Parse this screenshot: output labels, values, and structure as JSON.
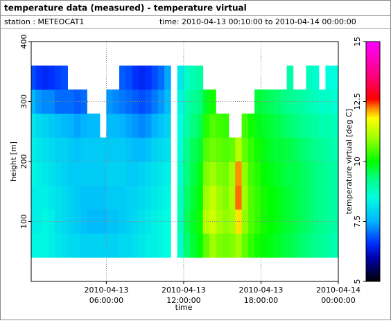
{
  "chart_data": {
    "type": "heatmap",
    "title": "temperature data (measured) - temperature virtual",
    "station": "station : METEOCAT1",
    "time_range": "time: 2010-04-13 00:10:00 to 2010-04-14 00:00:00",
    "xlabel": "time",
    "ylabel": "height [m]",
    "colorbar_label": "temperature virtual [deg C]",
    "xlim": [
      "2010-04-13 00:10:00",
      "2010-04-14 00:00:00"
    ],
    "xticks": [
      {
        "value": "2010-04-13 06:00:00",
        "label": [
          "2010-04-13",
          "06:00:00"
        ]
      },
      {
        "value": "2010-04-13 12:00:00",
        "label": [
          "2010-04-13",
          "12:00:00"
        ]
      },
      {
        "value": "2010-04-13 18:00:00",
        "label": [
          "2010-04-13",
          "18:00:00"
        ]
      },
      {
        "value": "2010-04-14 00:00:00",
        "label": [
          "2010-04-14",
          "00:00:00"
        ]
      }
    ],
    "ylim": [
      0,
      400
    ],
    "yticks": [
      100,
      200,
      300,
      400
    ],
    "grid": true,
    "clim": [
      5,
      15
    ],
    "cticks": [
      5,
      7.5,
      10,
      12.5,
      15
    ],
    "colorscale": [
      [
        5,
        "#000000"
      ],
      [
        6,
        "#0000b0"
      ],
      [
        6.6,
        "#0030ff"
      ],
      [
        7.5,
        "#00b4ff"
      ],
      [
        8.5,
        "#00ffe0"
      ],
      [
        9.3,
        "#00ff80"
      ],
      [
        10,
        "#00ff00"
      ],
      [
        11,
        "#a0ff00"
      ],
      [
        11.8,
        "#ffff00"
      ],
      [
        12.2,
        "#ff9000"
      ],
      [
        12.6,
        "#ff0000"
      ],
      [
        13.6,
        "#ff0080"
      ],
      [
        15,
        "#ff00ff"
      ]
    ],
    "x": [
      "2010-04-13 00:10:00",
      "2010-04-13 00:30:00",
      "2010-04-13 01:00:00",
      "2010-04-13 01:30:00",
      "2010-04-13 02:00:00",
      "2010-04-13 02:30:00",
      "2010-04-13 03:00:00",
      "2010-04-13 03:30:00",
      "2010-04-13 04:00:00",
      "2010-04-13 04:30:00",
      "2010-04-13 05:00:00",
      "2010-04-13 05:30:00",
      "2010-04-13 06:00:00",
      "2010-04-13 06:30:00",
      "2010-04-13 07:00:00",
      "2010-04-13 07:30:00",
      "2010-04-13 08:00:00",
      "2010-04-13 08:30:00",
      "2010-04-13 09:00:00",
      "2010-04-13 09:30:00",
      "2010-04-13 10:00:00",
      "2010-04-13 10:30:00",
      "2010-04-13 11:00:00",
      "2010-04-13 11:30:00",
      "2010-04-13 12:00:00",
      "2010-04-13 12:30:00",
      "2010-04-13 13:00:00",
      "2010-04-13 13:30:00",
      "2010-04-13 14:00:00",
      "2010-04-13 14:30:00",
      "2010-04-13 15:00:00",
      "2010-04-13 15:30:00",
      "2010-04-13 16:00:00",
      "2010-04-13 16:30:00",
      "2010-04-13 17:00:00",
      "2010-04-13 17:30:00",
      "2010-04-13 18:00:00",
      "2010-04-13 18:30:00",
      "2010-04-13 19:00:00",
      "2010-04-13 19:30:00",
      "2010-04-13 20:00:00",
      "2010-04-13 20:30:00",
      "2010-04-13 21:00:00",
      "2010-04-13 21:30:00",
      "2010-04-13 22:00:00",
      "2010-04-13 22:30:00",
      "2010-04-13 23:00:00",
      "2010-04-13 23:30:00",
      "2010-04-14 00:00:00"
    ],
    "y": [
      40,
      80,
      120,
      160,
      200,
      240,
      280,
      320,
      360
    ],
    "z": [
      [
        8.4,
        8.3,
        8.3,
        8.4,
        8.3,
        8.2,
        7.6,
        6.8
      ],
      [
        8.4,
        8.3,
        8.3,
        8.3,
        8.2,
        8.0,
        7.3,
        6.6
      ],
      [
        8.4,
        8.4,
        8.3,
        8.2,
        8.1,
        7.9,
        7.2,
        6.5
      ],
      [
        8.3,
        8.3,
        8.2,
        8.1,
        8.0,
        7.8,
        7.2,
        6.6
      ],
      [
        8.2,
        8.1,
        8.1,
        8.0,
        7.9,
        7.7,
        7.0,
        6.7
      ],
      [
        8.1,
        8.0,
        8.0,
        7.9,
        7.9,
        7.6,
        7.0,
        6.8
      ],
      [
        8.0,
        7.9,
        7.9,
        7.8,
        7.8,
        7.5,
        7.0,
        null
      ],
      [
        8.0,
        7.8,
        7.8,
        7.8,
        7.7,
        7.4,
        6.9,
        null
      ],
      [
        7.9,
        7.7,
        7.7,
        7.8,
        7.8,
        7.5,
        7.0,
        null
      ],
      [
        7.9,
        7.6,
        7.7,
        7.8,
        7.8,
        7.6,
        null,
        null
      ],
      [
        7.9,
        7.6,
        7.7,
        7.8,
        7.8,
        7.6,
        null,
        null
      ],
      [
        7.9,
        7.6,
        7.7,
        7.8,
        7.8,
        null,
        null,
        null
      ],
      [
        7.9,
        7.7,
        7.8,
        7.9,
        7.8,
        7.6,
        7.3,
        null
      ],
      [
        7.9,
        7.7,
        7.8,
        7.9,
        7.8,
        7.6,
        7.2,
        null
      ],
      [
        8.0,
        7.8,
        7.8,
        7.9,
        7.8,
        7.5,
        7.1,
        6.9
      ],
      [
        8.0,
        7.9,
        7.9,
        7.8,
        7.7,
        7.4,
        7.0,
        6.8
      ],
      [
        8.1,
        8.0,
        7.9,
        7.8,
        7.6,
        7.3,
        6.9,
        6.6
      ],
      [
        8.2,
        8.1,
        8.0,
        7.9,
        7.6,
        7.2,
        6.8,
        6.5
      ],
      [
        8.3,
        8.2,
        8.1,
        8.0,
        7.7,
        7.3,
        6.9,
        6.6
      ],
      [
        8.3,
        8.3,
        8.2,
        8.1,
        7.9,
        7.5,
        7.1,
        6.8
      ],
      [
        8.4,
        8.4,
        8.3,
        8.2,
        8.0,
        7.7,
        7.3,
        7.0
      ],
      [
        8.5,
        8.5,
        8.4,
        8.3,
        8.1,
        7.9,
        7.6,
        7.4
      ],
      [
        null,
        null,
        null,
        null,
        null,
        null,
        null,
        null
      ],
      [
        8.7,
        8.8,
        8.8,
        8.7,
        8.6,
        8.5,
        8.4,
        8.2
      ],
      [
        9.4,
        9.5,
        9.4,
        9.3,
        9.2,
        9.0,
        8.9,
        8.7
      ],
      [
        9.7,
        9.8,
        9.7,
        9.6,
        9.5,
        9.3,
        9.1,
        8.9
      ],
      [
        10.0,
        10.1,
        10.0,
        9.9,
        9.7,
        9.5,
        9.3,
        9.0
      ],
      [
        10.6,
        11.2,
        11.0,
        10.8,
        10.5,
        10.2,
        9.8,
        null
      ],
      [
        11.0,
        11.4,
        11.3,
        11.0,
        10.7,
        10.5,
        10.1,
        null
      ],
      [
        10.8,
        11.1,
        11.0,
        10.8,
        10.6,
        10.4,
        null,
        null
      ],
      [
        10.7,
        10.9,
        10.8,
        10.7,
        10.5,
        10.3,
        null,
        null
      ],
      [
        10.8,
        11.0,
        11.1,
        11.0,
        10.6,
        null,
        null,
        null
      ],
      [
        11.0,
        11.9,
        12.3,
        12.2,
        11.2,
        null,
        null,
        null
      ],
      [
        10.6,
        10.9,
        11.0,
        10.9,
        10.6,
        10.4,
        null,
        null
      ],
      [
        10.3,
        10.5,
        10.5,
        10.4,
        10.3,
        10.1,
        null,
        null
      ],
      [
        10.1,
        10.3,
        10.3,
        10.2,
        10.1,
        9.9,
        9.7,
        null
      ],
      [
        10.0,
        10.1,
        10.1,
        10.0,
        9.9,
        9.8,
        9.6,
        null
      ],
      [
        9.9,
        10.0,
        10.0,
        9.9,
        9.8,
        9.7,
        9.5,
        null
      ],
      [
        9.8,
        9.9,
        9.9,
        9.8,
        9.7,
        9.6,
        9.4,
        null
      ],
      [
        9.7,
        9.8,
        9.8,
        9.7,
        9.7,
        9.5,
        9.3,
        null
      ],
      [
        9.6,
        9.7,
        9.7,
        9.6,
        9.6,
        9.4,
        9.2,
        9.0
      ],
      [
        9.5,
        9.6,
        9.6,
        9.6,
        9.5,
        9.3,
        9.1,
        null
      ],
      [
        9.4,
        9.5,
        9.5,
        9.5,
        9.4,
        9.2,
        9.0,
        null
      ],
      [
        9.3,
        9.4,
        9.4,
        9.4,
        9.3,
        9.1,
        8.9,
        8.8
      ],
      [
        9.2,
        9.3,
        9.3,
        9.3,
        9.2,
        9.0,
        8.8,
        8.6
      ],
      [
        9.1,
        9.2,
        9.2,
        9.2,
        9.1,
        8.9,
        8.7,
        null
      ],
      [
        9.0,
        9.1,
        9.1,
        9.1,
        9.0,
        8.9,
        8.7,
        8.5
      ],
      [
        8.9,
        9.0,
        9.0,
        9.0,
        8.9,
        8.8,
        8.6,
        8.5
      ]
    ]
  }
}
